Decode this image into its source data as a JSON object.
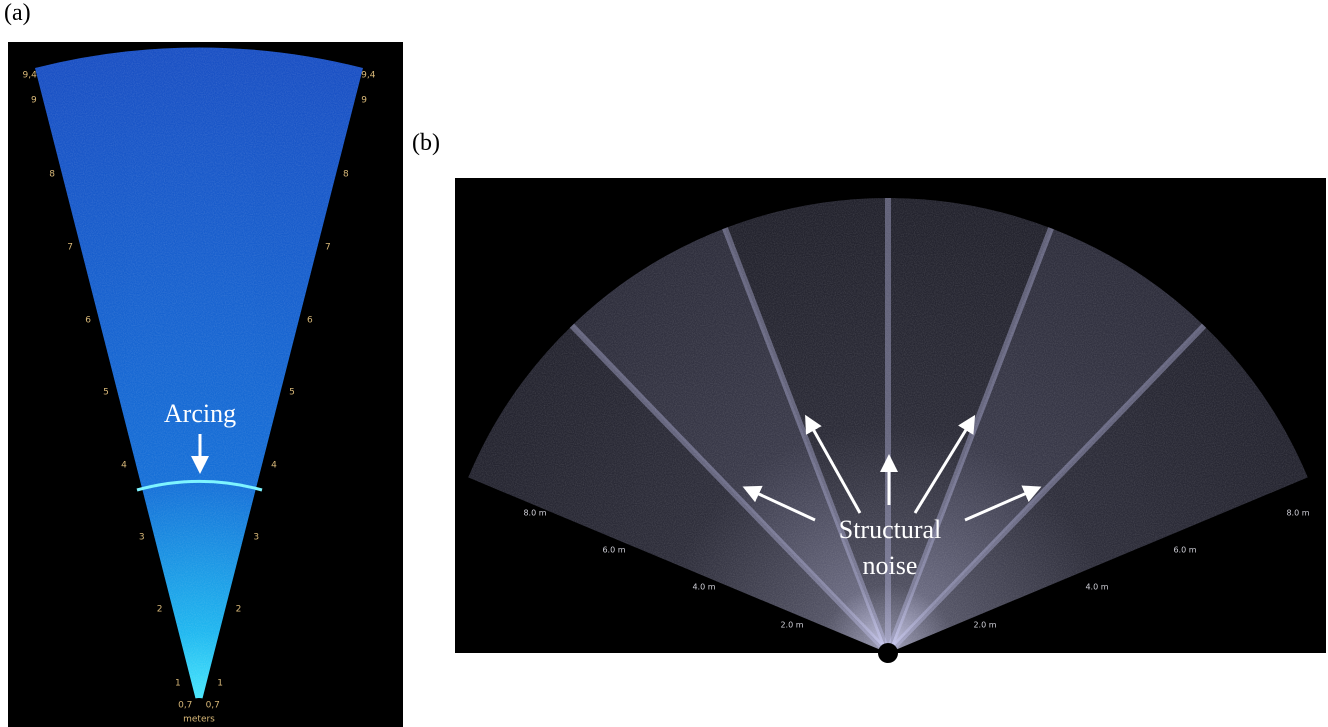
{
  "panels": [
    {
      "label": "(a)",
      "range_labels": [
        "9,4",
        "9",
        "8",
        "7",
        "6",
        "5",
        "4",
        "3",
        "2",
        "1",
        "0,7"
      ],
      "unit": "meters",
      "annotation": "Arcing"
    },
    {
      "label": "(b)",
      "range_labels": [
        "8.0 m",
        "6.0 m",
        "4.0 m",
        "2.0 m"
      ],
      "annotation": "Structural noise"
    }
  ]
}
